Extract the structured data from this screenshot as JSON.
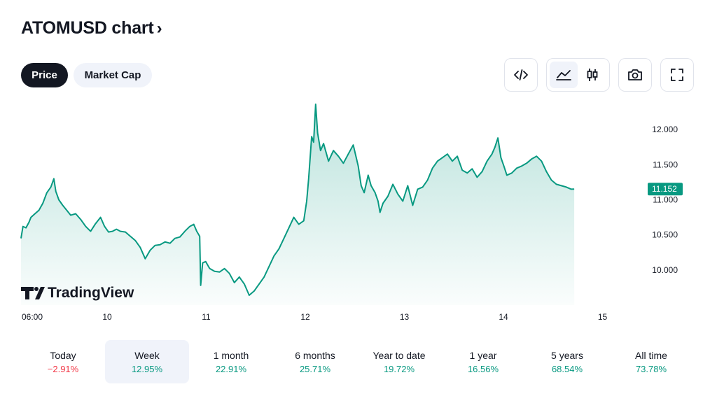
{
  "header": {
    "title": "ATOMUSD chart",
    "chevron": "›"
  },
  "toggle": {
    "price_label": "Price",
    "market_cap_label": "Market Cap"
  },
  "toolbar": {
    "icons": [
      "embed-code-icon",
      "area-chart-icon",
      "candlestick-icon",
      "camera-icon",
      "fullscreen-icon"
    ]
  },
  "colors": {
    "accent": "#089981",
    "negative": "#f23645",
    "text": "#131722",
    "muted_bg": "#f0f3fa"
  },
  "chart_data": {
    "type": "area",
    "symbol": "ATOMUSD",
    "watermark": "TradingView",
    "x_tick_labels": [
      "06:00",
      "10",
      "11",
      "12",
      "13",
      "14",
      "15"
    ],
    "y_tick_labels": [
      "12.000",
      "11.500",
      "11.000",
      "10.500",
      "10.000"
    ],
    "ylim": [
      9.5,
      12.35
    ],
    "last_price_label": "11.152",
    "last_price": 11.152,
    "series": [
      {
        "values": [
          [
            0.0,
            10.45
          ],
          [
            0.02,
            10.62
          ],
          [
            0.05,
            10.6
          ],
          [
            0.08,
            10.68
          ],
          [
            0.1,
            10.75
          ],
          [
            0.14,
            10.8
          ],
          [
            0.18,
            10.85
          ],
          [
            0.22,
            10.95
          ],
          [
            0.26,
            11.1
          ],
          [
            0.3,
            11.18
          ],
          [
            0.33,
            11.3
          ],
          [
            0.35,
            11.12
          ],
          [
            0.38,
            11.0
          ],
          [
            0.42,
            10.92
          ],
          [
            0.46,
            10.85
          ],
          [
            0.5,
            10.78
          ],
          [
            0.55,
            10.8
          ],
          [
            0.6,
            10.72
          ],
          [
            0.65,
            10.62
          ],
          [
            0.7,
            10.55
          ],
          [
            0.75,
            10.66
          ],
          [
            0.8,
            10.75
          ],
          [
            0.84,
            10.62
          ],
          [
            0.88,
            10.54
          ],
          [
            0.92,
            10.55
          ],
          [
            0.96,
            10.58
          ],
          [
            1.0,
            10.55
          ],
          [
            1.05,
            10.54
          ],
          [
            1.1,
            10.48
          ],
          [
            1.15,
            10.42
          ],
          [
            1.2,
            10.32
          ],
          [
            1.25,
            10.16
          ],
          [
            1.3,
            10.28
          ],
          [
            1.35,
            10.35
          ],
          [
            1.4,
            10.36
          ],
          [
            1.45,
            10.4
          ],
          [
            1.5,
            10.38
          ],
          [
            1.55,
            10.45
          ],
          [
            1.6,
            10.47
          ],
          [
            1.65,
            10.55
          ],
          [
            1.7,
            10.62
          ],
          [
            1.74,
            10.65
          ],
          [
            1.77,
            10.55
          ],
          [
            1.8,
            10.48
          ],
          [
            1.81,
            9.78
          ],
          [
            1.83,
            10.1
          ],
          [
            1.86,
            10.12
          ],
          [
            1.9,
            10.02
          ],
          [
            1.95,
            9.98
          ],
          [
            2.0,
            9.97
          ],
          [
            2.05,
            10.02
          ],
          [
            2.1,
            9.95
          ],
          [
            2.15,
            9.82
          ],
          [
            2.2,
            9.9
          ],
          [
            2.25,
            9.8
          ],
          [
            2.3,
            9.64
          ],
          [
            2.35,
            9.7
          ],
          [
            2.4,
            9.8
          ],
          [
            2.45,
            9.9
          ],
          [
            2.5,
            10.05
          ],
          [
            2.55,
            10.2
          ],
          [
            2.6,
            10.3
          ],
          [
            2.65,
            10.45
          ],
          [
            2.7,
            10.6
          ],
          [
            2.75,
            10.75
          ],
          [
            2.8,
            10.65
          ],
          [
            2.85,
            10.7
          ],
          [
            2.88,
            10.98
          ],
          [
            2.9,
            11.3
          ],
          [
            2.93,
            11.9
          ],
          [
            2.95,
            11.82
          ],
          [
            2.97,
            12.36
          ],
          [
            2.99,
            11.95
          ],
          [
            3.02,
            11.7
          ],
          [
            3.05,
            11.8
          ],
          [
            3.1,
            11.55
          ],
          [
            3.15,
            11.7
          ],
          [
            3.2,
            11.62
          ],
          [
            3.25,
            11.52
          ],
          [
            3.3,
            11.65
          ],
          [
            3.35,
            11.78
          ],
          [
            3.4,
            11.48
          ],
          [
            3.43,
            11.2
          ],
          [
            3.46,
            11.1
          ],
          [
            3.5,
            11.35
          ],
          [
            3.53,
            11.2
          ],
          [
            3.57,
            11.1
          ],
          [
            3.6,
            10.98
          ],
          [
            3.62,
            10.82
          ],
          [
            3.65,
            10.95
          ],
          [
            3.7,
            11.05
          ],
          [
            3.75,
            11.22
          ],
          [
            3.8,
            11.08
          ],
          [
            3.85,
            10.98
          ],
          [
            3.9,
            11.2
          ],
          [
            3.95,
            10.92
          ],
          [
            4.0,
            11.15
          ],
          [
            4.05,
            11.18
          ],
          [
            4.1,
            11.28
          ],
          [
            4.15,
            11.45
          ],
          [
            4.2,
            11.55
          ],
          [
            4.25,
            11.6
          ],
          [
            4.3,
            11.65
          ],
          [
            4.35,
            11.55
          ],
          [
            4.4,
            11.62
          ],
          [
            4.45,
            11.42
          ],
          [
            4.5,
            11.38
          ],
          [
            4.55,
            11.44
          ],
          [
            4.6,
            11.32
          ],
          [
            4.65,
            11.4
          ],
          [
            4.7,
            11.55
          ],
          [
            4.75,
            11.65
          ],
          [
            4.78,
            11.75
          ],
          [
            4.81,
            11.88
          ],
          [
            4.84,
            11.6
          ],
          [
            4.87,
            11.48
          ],
          [
            4.9,
            11.35
          ],
          [
            4.95,
            11.38
          ],
          [
            5.0,
            11.45
          ],
          [
            5.05,
            11.48
          ],
          [
            5.1,
            11.52
          ],
          [
            5.15,
            11.58
          ],
          [
            5.2,
            11.62
          ],
          [
            5.25,
            11.55
          ],
          [
            5.3,
            11.4
          ],
          [
            5.35,
            11.28
          ],
          [
            5.4,
            11.22
          ],
          [
            5.45,
            11.2
          ],
          [
            5.5,
            11.18
          ],
          [
            5.55,
            11.15
          ],
          [
            5.58,
            11.152
          ]
        ]
      }
    ]
  },
  "periods": [
    {
      "label": "Today",
      "change": "−2.91%",
      "positive": false,
      "active": false
    },
    {
      "label": "Week",
      "change": "12.95%",
      "positive": true,
      "active": true
    },
    {
      "label": "1 month",
      "change": "22.91%",
      "positive": true,
      "active": false
    },
    {
      "label": "6 months",
      "change": "25.71%",
      "positive": true,
      "active": false
    },
    {
      "label": "Year to date",
      "change": "19.72%",
      "positive": true,
      "active": false
    },
    {
      "label": "1 year",
      "change": "16.56%",
      "positive": true,
      "active": false
    },
    {
      "label": "5 years",
      "change": "68.54%",
      "positive": true,
      "active": false
    },
    {
      "label": "All time",
      "change": "73.78%",
      "positive": true,
      "active": false
    }
  ]
}
